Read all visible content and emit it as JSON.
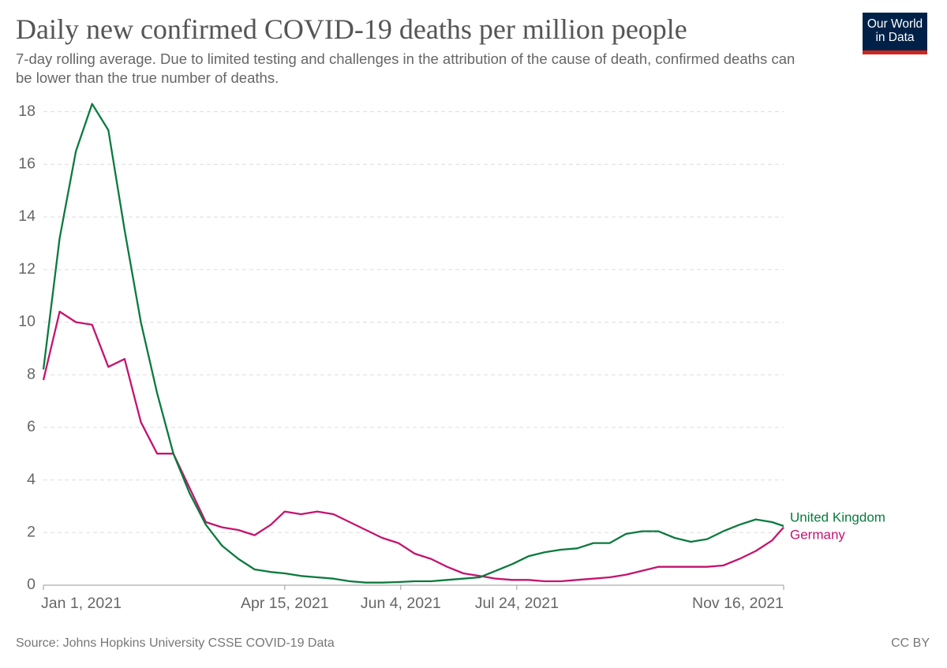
{
  "chart_data": {
    "type": "line",
    "title": "Daily new confirmed COVID-19 deaths per million people",
    "subtitle": "7-day rolling average. Due to limited testing and challenges in the attribution of the cause of death, confirmed deaths can be lower than the true number of deaths.",
    "source": "Source: Johns Hopkins University CSSE COVID-19 Data",
    "license": "CC BY",
    "logo": "Our World in Data",
    "x": [
      "2021-01-01",
      "2021-01-08",
      "2021-01-15",
      "2021-01-22",
      "2021-01-29",
      "2021-02-05",
      "2021-02-12",
      "2021-02-19",
      "2021-02-26",
      "2021-03-05",
      "2021-03-12",
      "2021-03-19",
      "2021-03-26",
      "2021-04-02",
      "2021-04-09",
      "2021-04-15",
      "2021-04-22",
      "2021-04-29",
      "2021-05-06",
      "2021-05-13",
      "2021-05-20",
      "2021-05-27",
      "2021-06-03",
      "2021-06-10",
      "2021-06-17",
      "2021-06-24",
      "2021-07-01",
      "2021-07-08",
      "2021-07-15",
      "2021-07-22",
      "2021-07-29",
      "2021-08-05",
      "2021-08-12",
      "2021-08-19",
      "2021-08-26",
      "2021-09-02",
      "2021-09-09",
      "2021-09-16",
      "2021-09-23",
      "2021-09-30",
      "2021-10-07",
      "2021-10-14",
      "2021-10-21",
      "2021-10-28",
      "2021-11-04",
      "2021-11-11",
      "2021-11-16"
    ],
    "series": [
      {
        "name": "Germany",
        "color": "#c4146f",
        "values": [
          7.8,
          10.4,
          10.0,
          9.9,
          8.3,
          8.6,
          6.2,
          5.0,
          5.0,
          3.7,
          2.4,
          2.2,
          2.1,
          1.9,
          2.3,
          2.8,
          2.7,
          2.8,
          2.7,
          2.4,
          2.1,
          1.8,
          1.6,
          1.2,
          1.0,
          0.7,
          0.45,
          0.35,
          0.25,
          0.2,
          0.2,
          0.15,
          0.15,
          0.2,
          0.25,
          0.3,
          0.4,
          0.55,
          0.7,
          0.7,
          0.7,
          0.7,
          0.75,
          1.0,
          1.3,
          1.7,
          2.2
        ]
      },
      {
        "name": "United Kingdom",
        "color": "#0b7a3e",
        "values": [
          8.2,
          13.2,
          16.5,
          18.3,
          17.3,
          13.5,
          10.0,
          7.3,
          5.0,
          3.5,
          2.3,
          1.5,
          1.0,
          0.6,
          0.5,
          0.45,
          0.35,
          0.3,
          0.25,
          0.15,
          0.1,
          0.1,
          0.12,
          0.15,
          0.15,
          0.2,
          0.25,
          0.3,
          0.55,
          0.8,
          1.1,
          1.25,
          1.35,
          1.4,
          1.6,
          1.6,
          1.95,
          2.05,
          2.05,
          1.8,
          1.65,
          1.75,
          2.05,
          2.3,
          2.5,
          2.4,
          2.25
        ]
      }
    ],
    "xlim": [
      "2021-01-01",
      "2021-11-16"
    ],
    "xticks": [
      {
        "value": "2021-01-01",
        "label": "Jan 1, 2021"
      },
      {
        "value": "2021-04-15",
        "label": "Apr 15, 2021"
      },
      {
        "value": "2021-06-04",
        "label": "Jun 4, 2021"
      },
      {
        "value": "2021-07-24",
        "label": "Jul 24, 2021"
      },
      {
        "value": "2021-11-16",
        "label": "Nov 16, 2021"
      }
    ],
    "ylim": [
      0,
      18.5
    ],
    "yticks": [
      0,
      2,
      4,
      6,
      8,
      10,
      12,
      14,
      16,
      18
    ],
    "grid": true
  }
}
